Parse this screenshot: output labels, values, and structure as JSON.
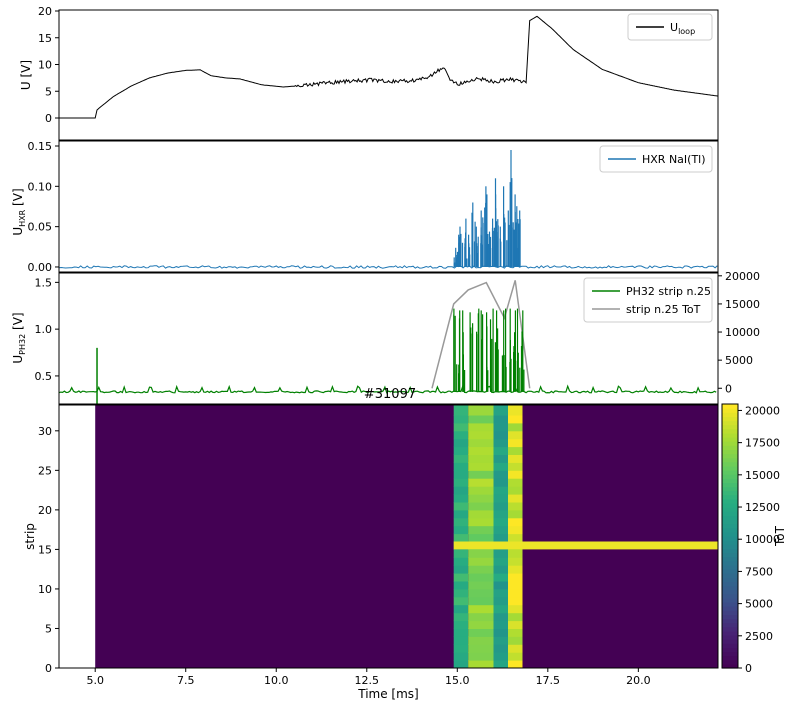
{
  "shot_label": "#31097",
  "chart_data": [
    {
      "id": "loop-voltage",
      "type": "line",
      "ylabel": "U [V]",
      "ylim": [
        0,
        20
      ],
      "xlim": [
        4,
        22.2
      ],
      "yticks": [
        "0",
        "5",
        "10",
        "15",
        "20"
      ],
      "ytick_values": [
        0,
        5,
        10,
        15,
        20
      ],
      "grid": false,
      "legend_position": "top-right",
      "series": [
        {
          "name": "U_loop",
          "color": "#000000",
          "x": [
            4.0,
            5.0,
            5.05,
            5.1,
            5.5,
            6.0,
            6.5,
            7.0,
            7.5,
            7.9,
            8.2,
            8.6,
            9.0,
            9.6,
            10.2,
            10.8,
            11.4,
            12.0,
            12.6,
            13.2,
            13.8,
            14.3,
            14.6,
            14.8,
            15.0,
            15.3,
            15.6,
            16.0,
            16.5,
            16.9,
            17.0,
            17.2,
            17.6,
            18.2,
            19.0,
            20.0,
            21.0,
            22.2
          ],
          "values": [
            0,
            0,
            1.5,
            1.8,
            4.0,
            6.0,
            7.5,
            8.4,
            8.9,
            9.0,
            7.9,
            7.5,
            7.3,
            6.2,
            5.8,
            6.1,
            6.6,
            6.9,
            7.1,
            6.8,
            7.0,
            7.9,
            9.6,
            7.2,
            6.3,
            6.7,
            7.4,
            6.8,
            7.2,
            6.6,
            18.2,
            19.0,
            16.8,
            12.8,
            9.1,
            6.6,
            5.2,
            4.1
          ]
        }
      ]
    },
    {
      "id": "hxr",
      "type": "line",
      "ylabel": "U_HXR",
      "ylim": [
        -0.005,
        0.15
      ],
      "xlim": [
        4,
        22.2
      ],
      "yticks": [
        "0.00",
        "0.05",
        "0.10",
        "0.15"
      ],
      "ytick_values": [
        0,
        0.05,
        0.1,
        0.15
      ],
      "grid": false,
      "legend_position": "top-right",
      "series": [
        {
          "name": "HXR NaI(Tl)",
          "color": "#1f77b4",
          "x": [
            14.95,
            15.0,
            15.1,
            15.2,
            15.3,
            15.45,
            15.55,
            15.65,
            15.75,
            15.85,
            15.95,
            16.05,
            16.1,
            16.2,
            16.3,
            16.4,
            16.5,
            16.6,
            16.7
          ],
          "values": [
            0.015,
            0.04,
            0.05,
            0.06,
            0.04,
            0.08,
            0.05,
            0.07,
            0.1,
            0.09,
            0.06,
            0.11,
            0.09,
            0.05,
            0.1,
            0.07,
            0.145,
            0.09,
            0.07
          ]
        }
      ]
    },
    {
      "id": "ph32",
      "type": "line",
      "ylabel": "U_PH32 [V]",
      "ylim": [
        0.2,
        1.6
      ],
      "xlim": [
        4,
        22.2
      ],
      "yticks": [
        "0.5",
        "1.0",
        "1.5"
      ],
      "ytick_values": [
        0.5,
        1.0,
        1.5
      ],
      "y2lim": [
        -2800,
        20500
      ],
      "y2ticks": [
        "0",
        "5000",
        "10000",
        "15000",
        "20000"
      ],
      "y2tick_values": [
        0,
        5000,
        10000,
        15000,
        20000
      ],
      "grid": false,
      "legend_position": "top-right",
      "series": [
        {
          "name": "PH32 strip n.25",
          "color": "#008000",
          "x": [
            5.05,
            14.95,
            15.05,
            15.2,
            15.4,
            15.55,
            15.65,
            15.8,
            15.95,
            16.1,
            16.25,
            16.35,
            16.5,
            16.6,
            16.7,
            16.8
          ],
          "values": [
            0.8,
            1.22,
            1.2,
            1.2,
            1.18,
            1.22,
            1.2,
            1.18,
            1.22,
            1.2,
            1.2,
            1.22,
            1.22,
            1.2,
            1.22,
            1.2
          ],
          "baseline": 0.33
        },
        {
          "name": "strip n.25 ToT",
          "color": "#999999",
          "x": [
            14.3,
            14.9,
            15.3,
            15.8,
            16.3,
            16.6,
            17.0
          ],
          "values": [
            0,
            15000,
            17500,
            18800,
            12500,
            19200,
            0
          ]
        }
      ]
    },
    {
      "id": "strip-map",
      "type": "heatmap",
      "xlabel": "Time [ms]",
      "ylabel": "strip",
      "xlim": [
        4,
        22.2
      ],
      "ylim": [
        0,
        32
      ],
      "xticks": [
        "5.0",
        "7.5",
        "10.0",
        "12.5",
        "15.0",
        "17.5",
        "20.0"
      ],
      "xtick_values": [
        5,
        7.5,
        10,
        12.5,
        15,
        17.5,
        20
      ],
      "yticks": [
        "0",
        "5",
        "10",
        "15",
        "20",
        "25",
        "30"
      ],
      "ytick_values": [
        0,
        5,
        10,
        15,
        20,
        25,
        30
      ],
      "colormap": "viridis",
      "colorbar_label": "ToT",
      "colorbar_ticks": [
        "0",
        "2500",
        "5000",
        "7500",
        "10000",
        "12500",
        "15000",
        "17500",
        "20000"
      ],
      "colorbar_tick_values": [
        0,
        2500,
        5000,
        7500,
        10000,
        12500,
        15000,
        17500,
        20000
      ],
      "vmax": 20500,
      "background_start": 5.0,
      "columns": [
        {
          "x0": 14.9,
          "x1": 15.3,
          "value": 13500
        },
        {
          "x0": 15.3,
          "x1": 16.0,
          "value": 17500
        },
        {
          "x0": 16.0,
          "x1": 16.4,
          "value": 12000
        },
        {
          "x0": 16.4,
          "x1": 16.8,
          "value": 20000
        }
      ],
      "highlight_row": {
        "strip": 15,
        "x0": 14.9,
        "x1": 22.2,
        "value": 20000
      }
    }
  ]
}
